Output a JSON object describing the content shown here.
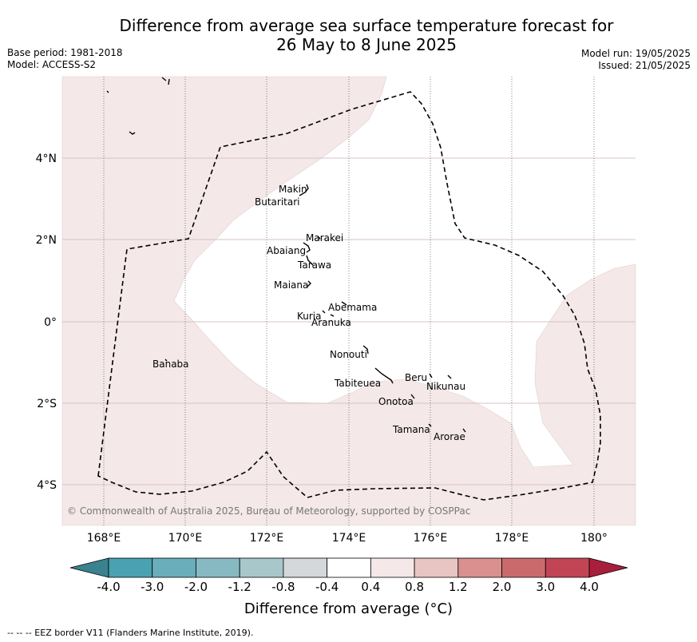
{
  "title_line1": "Difference from average sea surface temperature forecast for",
  "title_line2": "26 May to 8 June 2025",
  "base_period": "Base period: 1981-2018",
  "model": "Model: ACCESS-S2",
  "model_run": "Model run: 19/05/2025",
  "issued": "Issued: 21/05/2025",
  "copyright": "© Commonwealth of Australia 2025, Bureau of Meteorology, supported by COSPPac",
  "colorbar_title": "Difference from average (°C)",
  "footnote": "--  --  -- EEZ border V11 (Flanders Marine Institute, 2019).",
  "lon_ticks": [
    "168°E",
    "170°E",
    "172°E",
    "174°E",
    "176°E",
    "178°E",
    "180°"
  ],
  "lat_ticks": [
    "4°N",
    "2°N",
    "0°",
    "2°S",
    "4°S"
  ],
  "islands": [
    "Makin",
    "Butaritari",
    "Marakei",
    "Abaiang",
    "Tarawa",
    "Maiana",
    "Abemama",
    "Kuria",
    "Aranuka",
    "Banaba",
    "Nonouti",
    "Tabiteuea",
    "Beru",
    "Nikunau",
    "Onotoa",
    "Tamana",
    "Arorae"
  ],
  "colorbar": {
    "tick_labels": [
      "-4.0",
      "-3.0",
      "-2.0",
      "-1.2",
      "-0.8",
      "-0.4",
      "0.4",
      "0.8",
      "1.2",
      "2.0",
      "3.0",
      "4.0"
    ],
    "colors": [
      "#4aa1b1",
      "#6aadbb",
      "#87b9c3",
      "#a7c7cb",
      "#d4d8da",
      "#ffffff",
      "#f5e8e8",
      "#e8c4c2",
      "#d9908f",
      "#cb6a6c",
      "#c14555"
    ],
    "under_color": "#3a8290",
    "over_color": "#a81f3c",
    "map_field_color": "#f4e8e8"
  }
}
